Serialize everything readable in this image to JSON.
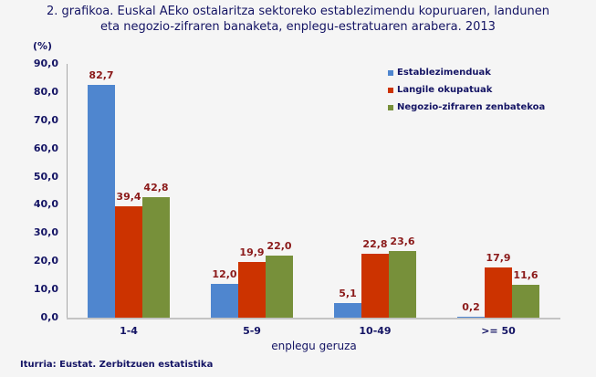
{
  "title_line1": "2. grafikoa. Euskal AEko ostalaritza sektoreko establezimendu kopuruaren, landunen",
  "title_line2": "eta negozio-zifraren banaketa, enplegu-estratuaren arabera. 2013",
  "unit": "(%)",
  "xlabel": "enplegu geruza",
  "source": "Iturria: Eustat. Zerbitzuen estatistika",
  "colors": {
    "Establezimenduak": "#4f86cf",
    "Langile okupatuak": "#cc3300",
    "Negozio-zifraren zenbatekoa": "#77903a"
  },
  "legend": [
    "Establezimenduak",
    "Langile okupatuak",
    "Negozio-zifraren zenbatekoa"
  ],
  "yticks": [
    "0,0",
    "10,0",
    "20,0",
    "30,0",
    "40,0",
    "50,0",
    "60,0",
    "70,0",
    "80,0",
    "90,0"
  ],
  "categories": [
    "1-4",
    "5-9",
    "10-49",
    ">= 50"
  ],
  "labels": [
    [
      "82,7",
      "39,4",
      "42,8"
    ],
    [
      "12,0",
      "19,9",
      "22,0"
    ],
    [
      "5,1",
      "22,8",
      "23,6"
    ],
    [
      "0,2",
      "17,9",
      "11,6"
    ]
  ],
  "chart_data": {
    "type": "bar",
    "title": "2. grafikoa. Euskal AEko ostalaritza sektoreko establezimendu kopuruaren, landunen eta negozio-zifraren banaketa, enplegu-estratuaren arabera. 2013",
    "xlabel": "enplegu geruza",
    "ylabel": "(%)",
    "ylim": [
      0,
      90
    ],
    "yticks": [
      0,
      10,
      20,
      30,
      40,
      50,
      60,
      70,
      80,
      90
    ],
    "grid": false,
    "legend_position": "top-right",
    "categories": [
      "1-4",
      "5-9",
      "10-49",
      ">= 50"
    ],
    "series": [
      {
        "name": "Establezimenduak",
        "color": "#4f86cf",
        "values": [
          82.7,
          12.0,
          5.1,
          0.2
        ]
      },
      {
        "name": "Langile okupatuak",
        "color": "#cc3300",
        "values": [
          39.4,
          19.9,
          22.8,
          17.9
        ]
      },
      {
        "name": "Negozio-zifraren zenbatekoa",
        "color": "#77903a",
        "values": [
          42.8,
          22.0,
          23.6,
          11.6
        ]
      }
    ],
    "source": "Iturria: Eustat. Zerbitzuen estatistika"
  }
}
